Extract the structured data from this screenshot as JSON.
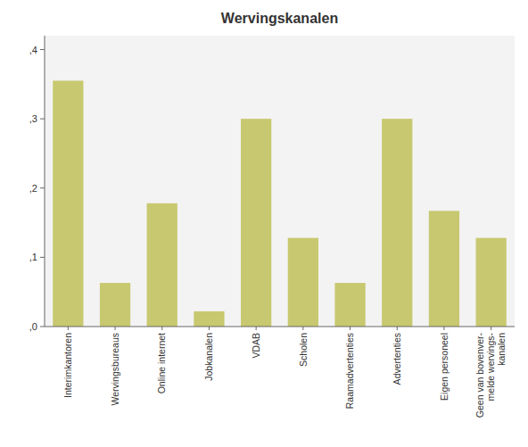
{
  "chart_data": {
    "type": "bar",
    "title": "Wervingskanalen",
    "categories": [
      "Interimkantoren",
      "Wervingsbureaus",
      "Online internet",
      "Jobkanalen",
      "VDAB",
      "Scholen",
      "Raamadvertenties",
      "Advertenties",
      "Eigen personeel",
      "Geen van bovenver-\nmelde wervings-\nkanalen"
    ],
    "values": [
      0.355,
      0.063,
      0.178,
      0.022,
      0.3,
      0.128,
      0.063,
      0.3,
      0.167,
      0.128
    ],
    "color": "#C8C870",
    "ylim": [
      0,
      0.42
    ],
    "yticks": [
      {
        "value": 0.0,
        "label": ",0"
      },
      {
        "value": 0.1,
        "label": ",1"
      },
      {
        "value": 0.2,
        "label": ",2"
      },
      {
        "value": 0.3,
        "label": ",3"
      },
      {
        "value": 0.4,
        "label": ",4"
      }
    ],
    "grid": false
  }
}
